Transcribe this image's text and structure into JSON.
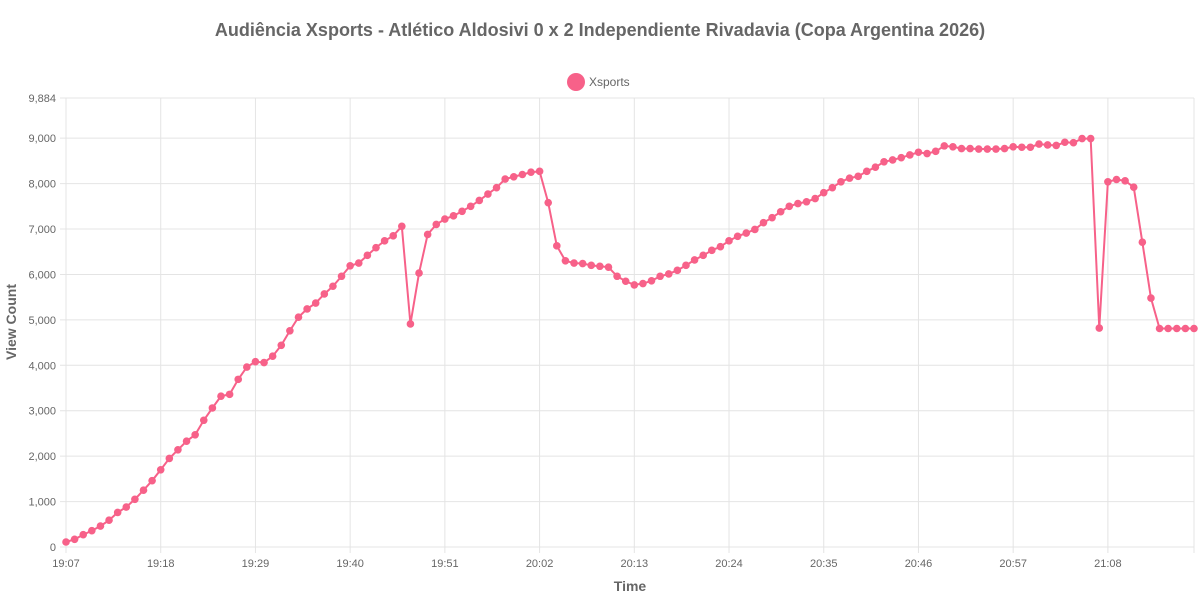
{
  "chart_data": {
    "type": "line",
    "title": "Audiência Xsports - Atlético Aldosivi 0 x 2 Independiente Rivadavia (Copa Argentina 2026)",
    "xlabel": "Time",
    "ylabel": "View Count",
    "ylim": [
      0,
      9884
    ],
    "y_ticks": [
      "0",
      "1,000",
      "2,000",
      "3,000",
      "4,000",
      "5,000",
      "6,000",
      "7,000",
      "8,000",
      "9,000",
      "9,884"
    ],
    "x_ticks": [
      "19:07",
      "19:18",
      "19:29",
      "19:40",
      "19:51",
      "20:02",
      "20:13",
      "20:24",
      "20:35",
      "20:46",
      "20:57",
      "21:08"
    ],
    "x_start": "19:07",
    "x_end": "21:18",
    "grid": true,
    "legend_position": "top-center",
    "series": [
      {
        "name": "Xsports",
        "color": "#f76189",
        "values": [
          110,
          170,
          270,
          360,
          460,
          590,
          760,
          880,
          1050,
          1250,
          1460,
          1700,
          1950,
          2140,
          2330,
          2470,
          2790,
          3060,
          3320,
          3360,
          3690,
          3960,
          4080,
          4060,
          4200,
          4440,
          4760,
          5060,
          5240,
          5370,
          5570,
          5740,
          5960,
          6190,
          6250,
          6420,
          6590,
          6740,
          6850,
          7060,
          4910,
          6030,
          6880,
          7100,
          7220,
          7290,
          7390,
          7500,
          7630,
          7770,
          7910,
          8100,
          8150,
          8200,
          8250,
          8270,
          7580,
          6630,
          6300,
          6250,
          6240,
          6200,
          6180,
          6160,
          5960,
          5850,
          5770,
          5800,
          5860,
          5960,
          6010,
          6090,
          6200,
          6320,
          6420,
          6530,
          6610,
          6740,
          6840,
          6910,
          6990,
          7140,
          7250,
          7380,
          7500,
          7560,
          7600,
          7670,
          7800,
          7910,
          8040,
          8120,
          8160,
          8270,
          8360,
          8480,
          8520,
          8570,
          8630,
          8690,
          8660,
          8710,
          8830,
          8810,
          8770,
          8770,
          8760,
          8760,
          8760,
          8770,
          8810,
          8800,
          8800,
          8870,
          8850,
          8840,
          8910,
          8900,
          8990,
          8990,
          4820,
          8040,
          8090,
          8060,
          7920,
          6710,
          5480,
          4810,
          4810,
          4810,
          4810,
          4810
        ]
      }
    ]
  }
}
